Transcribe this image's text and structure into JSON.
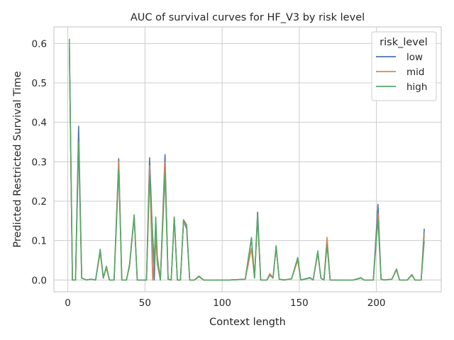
{
  "chart_data": {
    "type": "line",
    "title": "AUC of survival curves for HF_V3 by risk level",
    "xlabel": "Context length",
    "ylabel": "Predicted Restricted Survival Time",
    "xlim": [
      -9,
      242
    ],
    "ylim": [
      -0.03,
      0.642
    ],
    "xticks": [
      0,
      50,
      100,
      150,
      200
    ],
    "yticks": [
      0.0,
      0.1,
      0.2,
      0.3,
      0.4,
      0.5,
      0.6
    ],
    "ytick_labels": [
      "0.0",
      "0.1",
      "0.2",
      "0.3",
      "0.4",
      "0.5",
      "0.6"
    ],
    "grid": true,
    "legend": {
      "title": "risk_level",
      "position": "top-right"
    },
    "series": [
      {
        "name": "low",
        "color": "#4c72b0",
        "points": [
          [
            1,
            0.59
          ],
          [
            3,
            0.0
          ],
          [
            5,
            0.0
          ],
          [
            7,
            0.39
          ],
          [
            9,
            0.005
          ],
          [
            12,
            0.0
          ],
          [
            15,
            0.002
          ],
          [
            18,
            0.0
          ],
          [
            21,
            0.075
          ],
          [
            23,
            0.005
          ],
          [
            25,
            0.033
          ],
          [
            27,
            0.0
          ],
          [
            30,
            0.0
          ],
          [
            33,
            0.308
          ],
          [
            35,
            0.0
          ],
          [
            38,
            0.0
          ],
          [
            40,
            0.035
          ],
          [
            43,
            0.16
          ],
          [
            45,
            0.0
          ],
          [
            48,
            0.0
          ],
          [
            51,
            0.0
          ],
          [
            53,
            0.31
          ],
          [
            56,
            0.0
          ],
          [
            57,
            0.12
          ],
          [
            58,
            0.045
          ],
          [
            60,
            0.0
          ],
          [
            63,
            0.318
          ],
          [
            65,
            0.002
          ],
          [
            67,
            0.0
          ],
          [
            69,
            0.158
          ],
          [
            71,
            0.0
          ],
          [
            73,
            0.0
          ],
          [
            75,
            0.15
          ],
          [
            77,
            0.13
          ],
          [
            79,
            0.0
          ],
          [
            82,
            0.0
          ],
          [
            85,
            0.01
          ],
          [
            88,
            0.0
          ],
          [
            95,
            0.0
          ],
          [
            105,
            0.0
          ],
          [
            115,
            0.002
          ],
          [
            119,
            0.105
          ],
          [
            121,
            0.005
          ],
          [
            123,
            0.172
          ],
          [
            125,
            0.0
          ],
          [
            129,
            0.0
          ],
          [
            131,
            0.016
          ],
          [
            133,
            0.005
          ],
          [
            135,
            0.085
          ],
          [
            137,
            0.002
          ],
          [
            140,
            0.0
          ],
          [
            145,
            0.003
          ],
          [
            149,
            0.055
          ],
          [
            151,
            0.0
          ],
          [
            157,
            0.005
          ],
          [
            159,
            0.0
          ],
          [
            162,
            0.07
          ],
          [
            164,
            0.005
          ],
          [
            166,
            0.0
          ],
          [
            168,
            0.092
          ],
          [
            170,
            0.0
          ],
          [
            175,
            0.0
          ],
          [
            185,
            0.0
          ],
          [
            190,
            0.005
          ],
          [
            192,
            0.0
          ],
          [
            195,
            0.0
          ],
          [
            198,
            0.0
          ],
          [
            201,
            0.192
          ],
          [
            203,
            0.002
          ],
          [
            205,
            0.0
          ],
          [
            210,
            0.002
          ],
          [
            213,
            0.027
          ],
          [
            215,
            0.0
          ],
          [
            220,
            0.0
          ],
          [
            223,
            0.012
          ],
          [
            225,
            0.0
          ],
          [
            229,
            0.0
          ],
          [
            231,
            0.13
          ]
        ]
      },
      {
        "name": "mid",
        "color": "#dd8452",
        "points": [
          [
            1,
            0.585
          ],
          [
            3,
            0.0
          ],
          [
            5,
            0.0
          ],
          [
            7,
            0.35
          ],
          [
            9,
            0.005
          ],
          [
            12,
            0.0
          ],
          [
            15,
            0.002
          ],
          [
            18,
            0.0
          ],
          [
            21,
            0.07
          ],
          [
            23,
            0.005
          ],
          [
            25,
            0.03
          ],
          [
            27,
            0.0
          ],
          [
            30,
            0.0
          ],
          [
            33,
            0.3
          ],
          [
            35,
            0.0
          ],
          [
            38,
            0.0
          ],
          [
            40,
            0.035
          ],
          [
            43,
            0.165
          ],
          [
            45,
            0.0
          ],
          [
            48,
            0.0
          ],
          [
            51,
            0.0
          ],
          [
            53,
            0.29
          ],
          [
            55,
            0.0
          ],
          [
            57,
            0.115
          ],
          [
            58,
            0.04
          ],
          [
            60,
            0.0
          ],
          [
            63,
            0.3
          ],
          [
            65,
            0.002
          ],
          [
            67,
            0.0
          ],
          [
            69,
            0.16
          ],
          [
            71,
            0.0
          ],
          [
            73,
            0.0
          ],
          [
            75,
            0.15
          ],
          [
            77,
            0.135
          ],
          [
            79,
            0.0
          ],
          [
            82,
            0.0
          ],
          [
            85,
            0.008
          ],
          [
            88,
            0.0
          ],
          [
            95,
            0.0
          ],
          [
            105,
            0.0
          ],
          [
            115,
            0.002
          ],
          [
            119,
            0.08
          ],
          [
            121,
            0.005
          ],
          [
            123,
            0.155
          ],
          [
            125,
            0.0
          ],
          [
            129,
            0.0
          ],
          [
            131,
            0.016
          ],
          [
            133,
            0.005
          ],
          [
            135,
            0.082
          ],
          [
            137,
            0.002
          ],
          [
            140,
            0.0
          ],
          [
            145,
            0.003
          ],
          [
            149,
            0.05
          ],
          [
            151,
            0.0
          ],
          [
            157,
            0.006
          ],
          [
            159,
            0.0
          ],
          [
            162,
            0.068
          ],
          [
            164,
            0.005
          ],
          [
            166,
            0.0
          ],
          [
            168,
            0.108
          ],
          [
            170,
            0.0
          ],
          [
            175,
            0.0
          ],
          [
            185,
            0.0
          ],
          [
            190,
            0.005
          ],
          [
            192,
            0.0
          ],
          [
            195,
            0.0
          ],
          [
            198,
            0.0
          ],
          [
            201,
            0.168
          ],
          [
            203,
            0.002
          ],
          [
            205,
            0.0
          ],
          [
            210,
            0.002
          ],
          [
            213,
            0.025
          ],
          [
            215,
            0.0
          ],
          [
            220,
            0.0
          ],
          [
            223,
            0.012
          ],
          [
            225,
            0.0
          ],
          [
            229,
            0.0
          ],
          [
            231,
            0.115
          ]
        ]
      },
      {
        "name": "high",
        "color": "#55a868",
        "points": [
          [
            1,
            0.612
          ],
          [
            3,
            0.0
          ],
          [
            5,
            0.0
          ],
          [
            7,
            0.35
          ],
          [
            9,
            0.005
          ],
          [
            12,
            0.0
          ],
          [
            15,
            0.002
          ],
          [
            18,
            0.0
          ],
          [
            21,
            0.078
          ],
          [
            23,
            0.005
          ],
          [
            25,
            0.035
          ],
          [
            27,
            0.0
          ],
          [
            30,
            0.0
          ],
          [
            33,
            0.28
          ],
          [
            35,
            0.0
          ],
          [
            38,
            0.0
          ],
          [
            40,
            0.04
          ],
          [
            43,
            0.165
          ],
          [
            45,
            0.0
          ],
          [
            48,
            0.0
          ],
          [
            51,
            0.0
          ],
          [
            53,
            0.265
          ],
          [
            56,
            0.04
          ],
          [
            57,
            0.16
          ],
          [
            58,
            0.06
          ],
          [
            60,
            0.0
          ],
          [
            63,
            0.27
          ],
          [
            65,
            0.002
          ],
          [
            67,
            0.0
          ],
          [
            69,
            0.16
          ],
          [
            71,
            0.0
          ],
          [
            73,
            0.0
          ],
          [
            75,
            0.153
          ],
          [
            77,
            0.14
          ],
          [
            79,
            0.0
          ],
          [
            82,
            0.0
          ],
          [
            85,
            0.01
          ],
          [
            88,
            0.0
          ],
          [
            95,
            0.0
          ],
          [
            105,
            0.0
          ],
          [
            115,
            0.002
          ],
          [
            119,
            0.108
          ],
          [
            121,
            0.005
          ],
          [
            123,
            0.165
          ],
          [
            125,
            0.0
          ],
          [
            129,
            0.0
          ],
          [
            131,
            0.012
          ],
          [
            133,
            0.005
          ],
          [
            135,
            0.087
          ],
          [
            137,
            0.002
          ],
          [
            140,
            0.0
          ],
          [
            145,
            0.003
          ],
          [
            149,
            0.057
          ],
          [
            151,
            0.0
          ],
          [
            157,
            0.006
          ],
          [
            159,
            0.0
          ],
          [
            162,
            0.074
          ],
          [
            164,
            0.005
          ],
          [
            166,
            0.0
          ],
          [
            168,
            0.09
          ],
          [
            170,
            0.0
          ],
          [
            175,
            0.0
          ],
          [
            185,
            0.0
          ],
          [
            190,
            0.006
          ],
          [
            192,
            0.0
          ],
          [
            195,
            0.0
          ],
          [
            198,
            0.0
          ],
          [
            201,
            0.155
          ],
          [
            203,
            0.002
          ],
          [
            205,
            0.0
          ],
          [
            210,
            0.002
          ],
          [
            213,
            0.028
          ],
          [
            215,
            0.0
          ],
          [
            220,
            0.0
          ],
          [
            223,
            0.014
          ],
          [
            225,
            0.0
          ],
          [
            229,
            0.0
          ],
          [
            231,
            0.1
          ]
        ]
      }
    ]
  }
}
